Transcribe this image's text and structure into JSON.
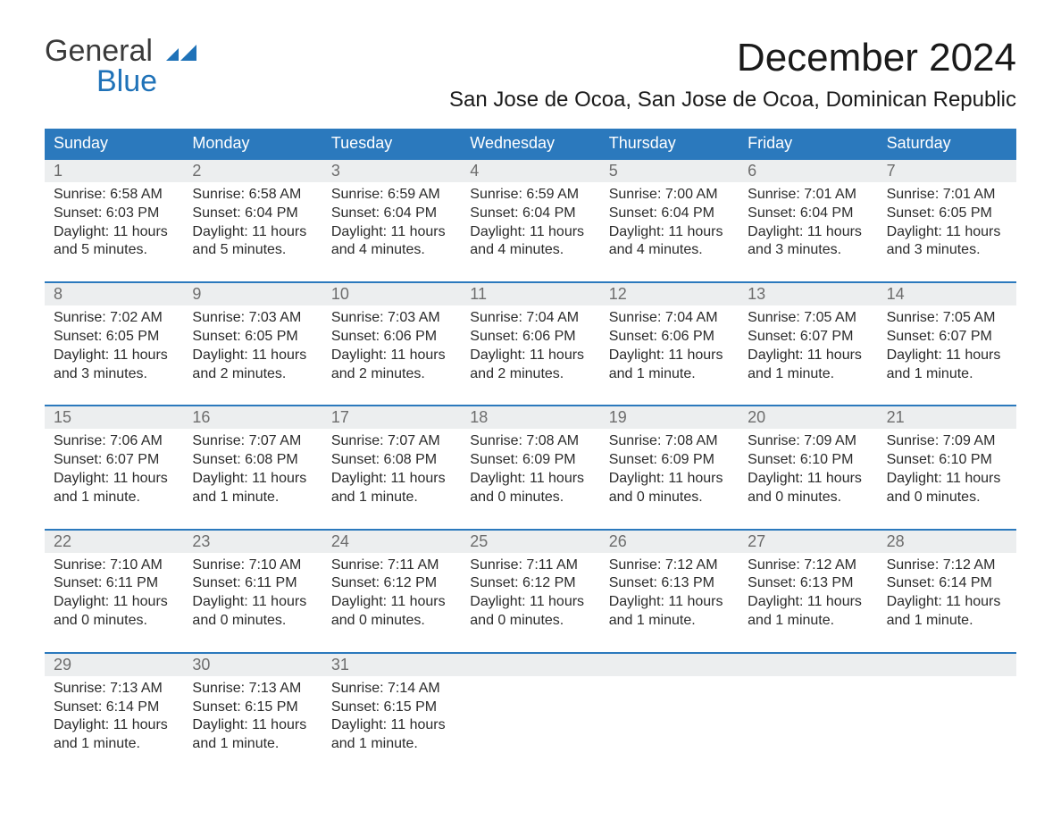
{
  "brand": {
    "text1": "General",
    "text2": "Blue",
    "color1": "#3a3a3a",
    "color2": "#1f72b8",
    "mark_color": "#1f72b8"
  },
  "title": "December 2024",
  "location": "San Jose de Ocoa, San Jose de Ocoa, Dominican Republic",
  "colors": {
    "header_bg": "#2b79bd",
    "header_text": "#ffffff",
    "daynum_bg": "#eceeef",
    "daynum_border": "#2b79bd",
    "daynum_text": "#6d6d6d",
    "body_text": "#2b2b2b",
    "page_bg": "#ffffff"
  },
  "fonts": {
    "title_pt": 44,
    "location_pt": 24,
    "dow_pt": 18,
    "daynum_pt": 18,
    "detail_pt": 16
  },
  "days_of_week": [
    "Sunday",
    "Monday",
    "Tuesday",
    "Wednesday",
    "Thursday",
    "Friday",
    "Saturday"
  ],
  "weeks": [
    {
      "days": [
        {
          "n": "1",
          "sunrise": "Sunrise: 6:58 AM",
          "sunset": "Sunset: 6:03 PM",
          "dl1": "Daylight: 11 hours",
          "dl2": "and 5 minutes."
        },
        {
          "n": "2",
          "sunrise": "Sunrise: 6:58 AM",
          "sunset": "Sunset: 6:04 PM",
          "dl1": "Daylight: 11 hours",
          "dl2": "and 5 minutes."
        },
        {
          "n": "3",
          "sunrise": "Sunrise: 6:59 AM",
          "sunset": "Sunset: 6:04 PM",
          "dl1": "Daylight: 11 hours",
          "dl2": "and 4 minutes."
        },
        {
          "n": "4",
          "sunrise": "Sunrise: 6:59 AM",
          "sunset": "Sunset: 6:04 PM",
          "dl1": "Daylight: 11 hours",
          "dl2": "and 4 minutes."
        },
        {
          "n": "5",
          "sunrise": "Sunrise: 7:00 AM",
          "sunset": "Sunset: 6:04 PM",
          "dl1": "Daylight: 11 hours",
          "dl2": "and 4 minutes."
        },
        {
          "n": "6",
          "sunrise": "Sunrise: 7:01 AM",
          "sunset": "Sunset: 6:04 PM",
          "dl1": "Daylight: 11 hours",
          "dl2": "and 3 minutes."
        },
        {
          "n": "7",
          "sunrise": "Sunrise: 7:01 AM",
          "sunset": "Sunset: 6:05 PM",
          "dl1": "Daylight: 11 hours",
          "dl2": "and 3 minutes."
        }
      ]
    },
    {
      "days": [
        {
          "n": "8",
          "sunrise": "Sunrise: 7:02 AM",
          "sunset": "Sunset: 6:05 PM",
          "dl1": "Daylight: 11 hours",
          "dl2": "and 3 minutes."
        },
        {
          "n": "9",
          "sunrise": "Sunrise: 7:03 AM",
          "sunset": "Sunset: 6:05 PM",
          "dl1": "Daylight: 11 hours",
          "dl2": "and 2 minutes."
        },
        {
          "n": "10",
          "sunrise": "Sunrise: 7:03 AM",
          "sunset": "Sunset: 6:06 PM",
          "dl1": "Daylight: 11 hours",
          "dl2": "and 2 minutes."
        },
        {
          "n": "11",
          "sunrise": "Sunrise: 7:04 AM",
          "sunset": "Sunset: 6:06 PM",
          "dl1": "Daylight: 11 hours",
          "dl2": "and 2 minutes."
        },
        {
          "n": "12",
          "sunrise": "Sunrise: 7:04 AM",
          "sunset": "Sunset: 6:06 PM",
          "dl1": "Daylight: 11 hours",
          "dl2": "and 1 minute."
        },
        {
          "n": "13",
          "sunrise": "Sunrise: 7:05 AM",
          "sunset": "Sunset: 6:07 PM",
          "dl1": "Daylight: 11 hours",
          "dl2": "and 1 minute."
        },
        {
          "n": "14",
          "sunrise": "Sunrise: 7:05 AM",
          "sunset": "Sunset: 6:07 PM",
          "dl1": "Daylight: 11 hours",
          "dl2": "and 1 minute."
        }
      ]
    },
    {
      "days": [
        {
          "n": "15",
          "sunrise": "Sunrise: 7:06 AM",
          "sunset": "Sunset: 6:07 PM",
          "dl1": "Daylight: 11 hours",
          "dl2": "and 1 minute."
        },
        {
          "n": "16",
          "sunrise": "Sunrise: 7:07 AM",
          "sunset": "Sunset: 6:08 PM",
          "dl1": "Daylight: 11 hours",
          "dl2": "and 1 minute."
        },
        {
          "n": "17",
          "sunrise": "Sunrise: 7:07 AM",
          "sunset": "Sunset: 6:08 PM",
          "dl1": "Daylight: 11 hours",
          "dl2": "and 1 minute."
        },
        {
          "n": "18",
          "sunrise": "Sunrise: 7:08 AM",
          "sunset": "Sunset: 6:09 PM",
          "dl1": "Daylight: 11 hours",
          "dl2": "and 0 minutes."
        },
        {
          "n": "19",
          "sunrise": "Sunrise: 7:08 AM",
          "sunset": "Sunset: 6:09 PM",
          "dl1": "Daylight: 11 hours",
          "dl2": "and 0 minutes."
        },
        {
          "n": "20",
          "sunrise": "Sunrise: 7:09 AM",
          "sunset": "Sunset: 6:10 PM",
          "dl1": "Daylight: 11 hours",
          "dl2": "and 0 minutes."
        },
        {
          "n": "21",
          "sunrise": "Sunrise: 7:09 AM",
          "sunset": "Sunset: 6:10 PM",
          "dl1": "Daylight: 11 hours",
          "dl2": "and 0 minutes."
        }
      ]
    },
    {
      "days": [
        {
          "n": "22",
          "sunrise": "Sunrise: 7:10 AM",
          "sunset": "Sunset: 6:11 PM",
          "dl1": "Daylight: 11 hours",
          "dl2": "and 0 minutes."
        },
        {
          "n": "23",
          "sunrise": "Sunrise: 7:10 AM",
          "sunset": "Sunset: 6:11 PM",
          "dl1": "Daylight: 11 hours",
          "dl2": "and 0 minutes."
        },
        {
          "n": "24",
          "sunrise": "Sunrise: 7:11 AM",
          "sunset": "Sunset: 6:12 PM",
          "dl1": "Daylight: 11 hours",
          "dl2": "and 0 minutes."
        },
        {
          "n": "25",
          "sunrise": "Sunrise: 7:11 AM",
          "sunset": "Sunset: 6:12 PM",
          "dl1": "Daylight: 11 hours",
          "dl2": "and 0 minutes."
        },
        {
          "n": "26",
          "sunrise": "Sunrise: 7:12 AM",
          "sunset": "Sunset: 6:13 PM",
          "dl1": "Daylight: 11 hours",
          "dl2": "and 1 minute."
        },
        {
          "n": "27",
          "sunrise": "Sunrise: 7:12 AM",
          "sunset": "Sunset: 6:13 PM",
          "dl1": "Daylight: 11 hours",
          "dl2": "and 1 minute."
        },
        {
          "n": "28",
          "sunrise": "Sunrise: 7:12 AM",
          "sunset": "Sunset: 6:14 PM",
          "dl1": "Daylight: 11 hours",
          "dl2": "and 1 minute."
        }
      ]
    },
    {
      "days": [
        {
          "n": "29",
          "sunrise": "Sunrise: 7:13 AM",
          "sunset": "Sunset: 6:14 PM",
          "dl1": "Daylight: 11 hours",
          "dl2": "and 1 minute."
        },
        {
          "n": "30",
          "sunrise": "Sunrise: 7:13 AM",
          "sunset": "Sunset: 6:15 PM",
          "dl1": "Daylight: 11 hours",
          "dl2": "and 1 minute."
        },
        {
          "n": "31",
          "sunrise": "Sunrise: 7:14 AM",
          "sunset": "Sunset: 6:15 PM",
          "dl1": "Daylight: 11 hours",
          "dl2": "and 1 minute."
        },
        {
          "n": "",
          "sunrise": "",
          "sunset": "",
          "dl1": "",
          "dl2": "",
          "empty": true
        },
        {
          "n": "",
          "sunrise": "",
          "sunset": "",
          "dl1": "",
          "dl2": "",
          "empty": true
        },
        {
          "n": "",
          "sunrise": "",
          "sunset": "",
          "dl1": "",
          "dl2": "",
          "empty": true
        },
        {
          "n": "",
          "sunrise": "",
          "sunset": "",
          "dl1": "",
          "dl2": "",
          "empty": true
        }
      ]
    }
  ]
}
